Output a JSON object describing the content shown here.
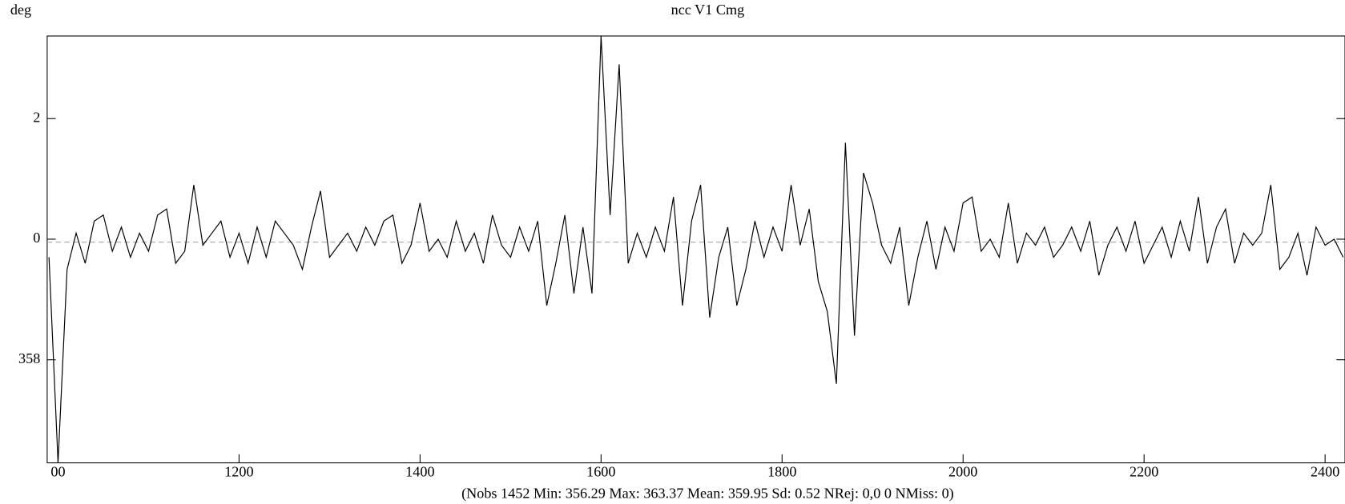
{
  "chart_data": {
    "type": "line",
    "title": "ncc V1 Cmg",
    "y_label": "deg",
    "footer": "(Nobs 1452 Min: 356.29 Max: 363.37 Mean: 359.95 Sd: 0.52 NRej: 0,0 0 NMiss: 0)",
    "color": "#000000",
    "hline": 359.95,
    "hline_color": "#999999",
    "xlim": [
      988,
      2422
    ],
    "ylim": [
      356.29,
      363.37
    ],
    "xticks": [
      {
        "value": 1000,
        "label": "00"
      },
      1200,
      1400,
      1600,
      1800,
      2000,
      2200,
      2400
    ],
    "yticks": [
      {
        "value": 362,
        "label": "2"
      },
      {
        "value": 360,
        "label": "0"
      },
      358
    ],
    "x": [
      990,
      1000,
      1010,
      1020,
      1030,
      1040,
      1050,
      1060,
      1070,
      1080,
      1090,
      1100,
      1110,
      1120,
      1130,
      1140,
      1150,
      1160,
      1170,
      1180,
      1190,
      1200,
      1210,
      1220,
      1230,
      1240,
      1250,
      1260,
      1270,
      1280,
      1290,
      1300,
      1310,
      1320,
      1330,
      1340,
      1350,
      1360,
      1370,
      1380,
      1390,
      1400,
      1410,
      1420,
      1430,
      1440,
      1450,
      1460,
      1470,
      1480,
      1490,
      1500,
      1510,
      1520,
      1530,
      1540,
      1550,
      1560,
      1570,
      1580,
      1590,
      1600,
      1610,
      1620,
      1630,
      1640,
      1650,
      1660,
      1670,
      1680,
      1690,
      1700,
      1710,
      1720,
      1730,
      1740,
      1750,
      1760,
      1770,
      1780,
      1790,
      1800,
      1810,
      1820,
      1830,
      1840,
      1850,
      1860,
      1870,
      1880,
      1890,
      1900,
      1910,
      1920,
      1930,
      1940,
      1950,
      1960,
      1970,
      1980,
      1990,
      2000,
      2010,
      2020,
      2030,
      2040,
      2050,
      2060,
      2070,
      2080,
      2090,
      2100,
      2110,
      2120,
      2130,
      2140,
      2150,
      2160,
      2170,
      2180,
      2190,
      2200,
      2210,
      2220,
      2230,
      2240,
      2250,
      2260,
      2270,
      2280,
      2290,
      2300,
      2310,
      2320,
      2330,
      2340,
      2350,
      2360,
      2370,
      2380,
      2390,
      2400,
      2410,
      2420
    ],
    "values": [
      359.7,
      356.29,
      359.5,
      360.1,
      359.6,
      360.3,
      360.4,
      359.8,
      360.2,
      359.7,
      360.1,
      359.8,
      360.4,
      360.5,
      359.6,
      359.8,
      360.9,
      359.9,
      360.1,
      360.3,
      359.7,
      360.1,
      359.6,
      360.2,
      359.7,
      360.3,
      360.1,
      359.9,
      359.5,
      360.2,
      360.8,
      359.7,
      359.9,
      360.1,
      359.8,
      360.2,
      359.9,
      360.3,
      360.4,
      359.6,
      359.9,
      360.6,
      359.8,
      360.0,
      359.7,
      360.3,
      359.8,
      360.1,
      359.6,
      360.4,
      359.9,
      359.7,
      360.2,
      359.8,
      360.3,
      358.9,
      359.6,
      360.4,
      359.1,
      360.2,
      359.1,
      363.37,
      360.4,
      362.9,
      359.6,
      360.1,
      359.7,
      360.2,
      359.8,
      360.7,
      358.9,
      360.3,
      360.9,
      358.7,
      359.7,
      360.2,
      358.9,
      359.5,
      360.3,
      359.7,
      360.2,
      359.8,
      360.9,
      359.9,
      360.5,
      359.3,
      358.8,
      357.6,
      361.6,
      358.4,
      361.1,
      360.6,
      359.9,
      359.6,
      360.2,
      358.9,
      359.7,
      360.3,
      359.5,
      360.2,
      359.8,
      360.6,
      360.7,
      359.8,
      360.0,
      359.7,
      360.6,
      359.6,
      360.1,
      359.9,
      360.2,
      359.7,
      359.9,
      360.2,
      359.8,
      360.3,
      359.4,
      359.9,
      360.2,
      359.8,
      360.3,
      359.6,
      359.9,
      360.2,
      359.7,
      360.3,
      359.8,
      360.7,
      359.6,
      360.2,
      360.5,
      359.6,
      360.1,
      359.9,
      360.1,
      360.9,
      359.5,
      359.7,
      360.1,
      359.4,
      360.2,
      359.9,
      360.0,
      359.7
    ]
  }
}
